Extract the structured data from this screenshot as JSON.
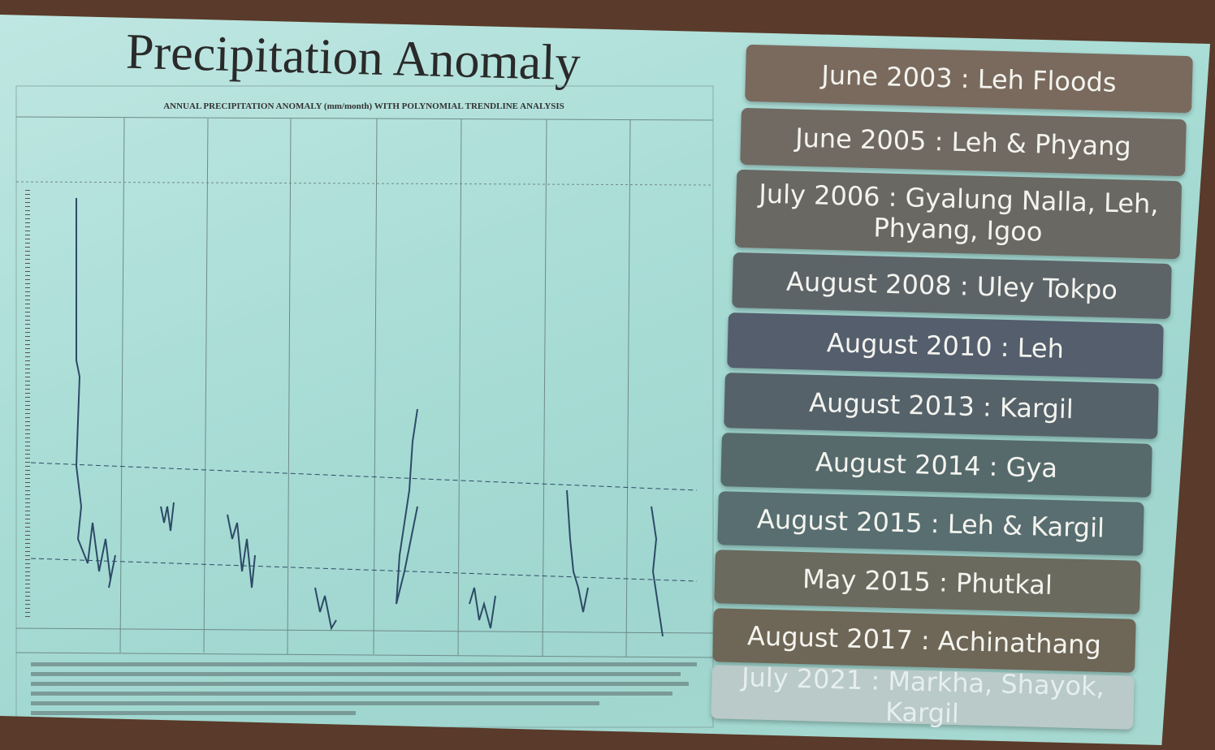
{
  "title": "Precipitation Anomaly",
  "figure": {
    "subtitle": "ANNUAL PRECIPITATION ANOMALY (mm/month) WITH POLYNOMIAL TRENDLINE ANALYSIS"
  },
  "events": [
    "June 2003 : Leh Floods",
    "June 2005 : Leh & Phyang",
    "July 2006 : Gyalung Nalla, Leh, Phyang, Igoo",
    "August 2008 : Uley Tokpo",
    "August 2010 : Leh",
    "August 2013 : Kargil",
    "August 2014 : Gya",
    "August 2015 : Leh & Kargil",
    "May 2015 : Phutkal",
    "August 2017 : Achinathang",
    "July 2021 : Markha, Shayok, Kargil"
  ]
}
